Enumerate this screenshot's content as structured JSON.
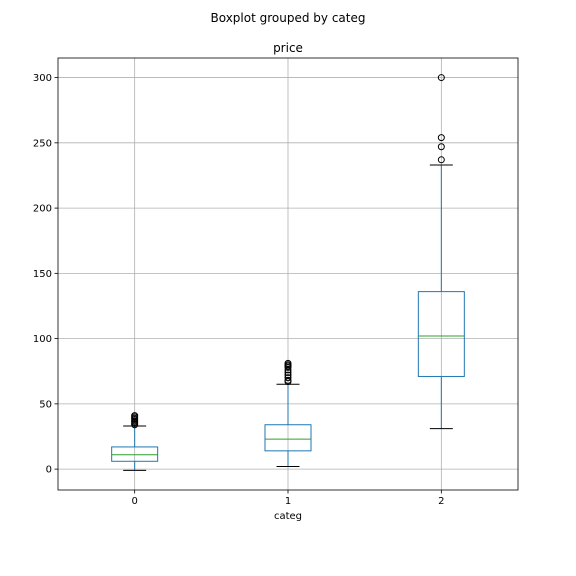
{
  "chart_data": {
    "type": "boxplot",
    "suptitle": "Boxplot grouped by categ",
    "title": "price",
    "xlabel": "categ",
    "ylabel": "",
    "ylim": [
      -16,
      315
    ],
    "yticks": [
      0,
      50,
      100,
      150,
      200,
      250,
      300
    ],
    "grid": true,
    "categories": [
      "0",
      "1",
      "2"
    ],
    "boxes": [
      {
        "category": "0",
        "whisker_low": -1,
        "q1": 6,
        "median": 11,
        "q3": 17,
        "whisker_high": 33,
        "fliers": [
          34,
          35,
          36,
          37,
          38,
          39,
          40,
          41
        ]
      },
      {
        "category": "1",
        "whisker_low": 2,
        "q1": 14,
        "median": 23,
        "q3": 34,
        "whisker_high": 65,
        "fliers": [
          67,
          68,
          70,
          72,
          74,
          76,
          78,
          79,
          80,
          81
        ]
      },
      {
        "category": "2",
        "whisker_low": 31,
        "q1": 71,
        "median": 102,
        "q3": 136,
        "whisker_high": 233,
        "fliers": [
          237,
          247,
          254,
          300
        ]
      }
    ]
  }
}
